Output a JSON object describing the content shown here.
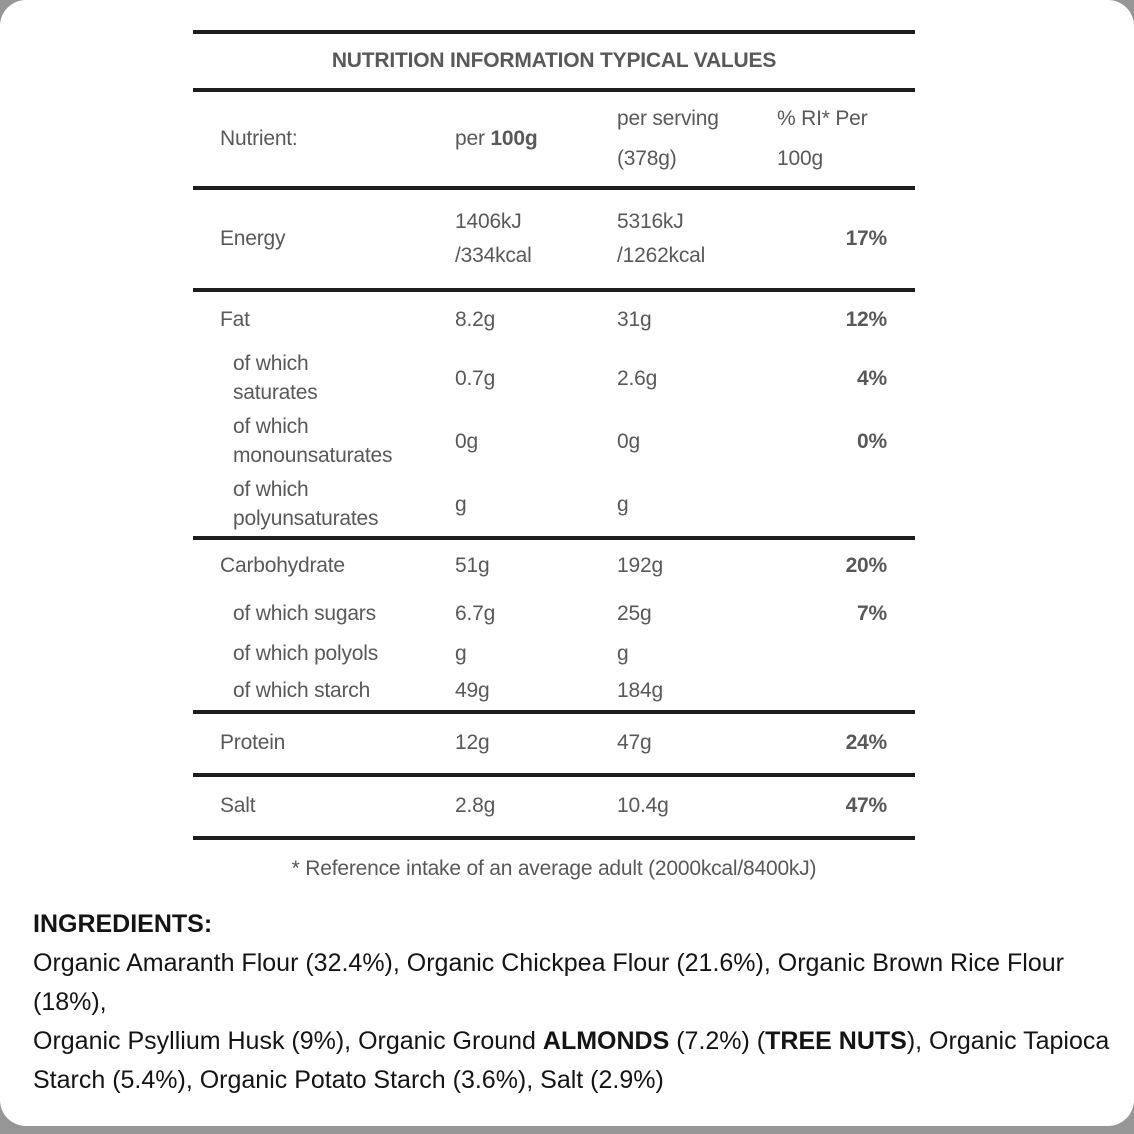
{
  "colors": {
    "outer_background": "#969696",
    "card_background": "#ffffff",
    "table_text_gray": "#58595b",
    "rule_black": "#1d1d1b",
    "ingredients_black": "#141414"
  },
  "table": {
    "title": "NUTRITION INFORMATION TYPICAL VALUES",
    "header": {
      "nutrient": "Nutrient:",
      "per100_prefix": "per ",
      "per100_bold": "100g",
      "per_serving": "per serving\n(378g)",
      "ri": "% RI* Per\n100g"
    },
    "rows": [
      {
        "label": "Energy",
        "per_100g": "1406kJ\n/334kcal",
        "per_serving": "5316kJ\n/1262kcal",
        "ri": "17%"
      },
      {
        "label": "Fat",
        "per_100g": "8.2g",
        "per_serving": "31g",
        "ri": "12%"
      },
      {
        "label": "of which\nsaturates",
        "per_100g": "0.7g",
        "per_serving": "2.6g",
        "ri": "4%"
      },
      {
        "label": "of which\nmonounsaturates",
        "per_100g": "0g",
        "per_serving": "0g",
        "ri": "0%"
      },
      {
        "label": "of which\npolyunsaturates",
        "per_100g": "g",
        "per_serving": "g",
        "ri": ""
      },
      {
        "label": "Carbohydrate",
        "per_100g": "51g",
        "per_serving": "192g",
        "ri": "20%"
      },
      {
        "label": "of which sugars",
        "per_100g": "6.7g",
        "per_serving": "25g",
        "ri": "7%"
      },
      {
        "label": "of which polyols",
        "per_100g": "g",
        "per_serving": "g",
        "ri": ""
      },
      {
        "label": "of which starch",
        "per_100g": "49g",
        "per_serving": "184g",
        "ri": ""
      },
      {
        "label": "Protein",
        "per_100g": "12g",
        "per_serving": "47g",
        "ri": "24%"
      },
      {
        "label": "Salt",
        "per_100g": "2.8g",
        "per_serving": "10.4g",
        "ri": "47%"
      }
    ],
    "footnote": "* Reference intake of an average adult (2000kcal/8400kJ)"
  },
  "ingredients": {
    "heading": "INGREDIENTS:",
    "part1": "Organic Amaranth Flour (32.4%), Organic Chickpea Flour (21.6%), Organic Brown Rice Flour (18%),\nOrganic Psyllium Husk (9%), Organic Ground ",
    "allergen1": "ALMONDS",
    "part2": " (7.2%) (",
    "allergen2": "TREE NUTS",
    "part3": "), Organic Tapioca\nStarch (5.4%), Organic Potato Starch (3.6%), Salt (2.9%)"
  }
}
